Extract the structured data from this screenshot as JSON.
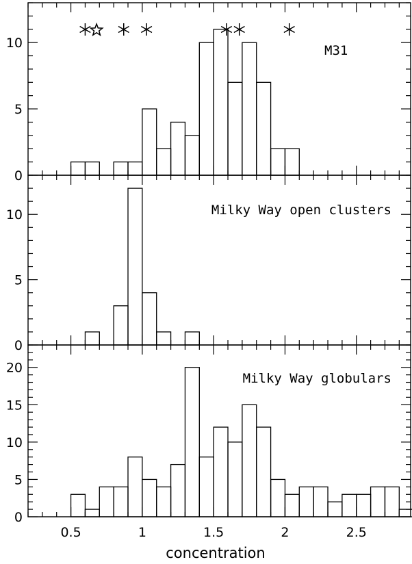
{
  "chart_data": [
    {
      "type": "bar",
      "panel_label": "M31",
      "bin_width": 0.1,
      "bin_starts": [
        0.5,
        0.6,
        0.7,
        0.8,
        0.9,
        1.0,
        1.1,
        1.2,
        1.3,
        1.4,
        1.5,
        1.6,
        1.7,
        1.8,
        1.9,
        2.0
      ],
      "values": [
        1,
        1,
        0,
        1,
        1,
        5,
        2,
        4,
        3,
        10,
        11,
        7,
        10,
        7,
        2,
        2
      ],
      "ylim": [
        0,
        13
      ],
      "yticks": [
        0,
        5,
        10
      ],
      "markers": [
        {
          "x": 0.6,
          "symbol": "asterisk"
        },
        {
          "x": 0.68,
          "symbol": "star-open"
        },
        {
          "x": 0.87,
          "symbol": "asterisk"
        },
        {
          "x": 1.03,
          "symbol": "asterisk"
        },
        {
          "x": 1.59,
          "symbol": "asterisk"
        },
        {
          "x": 1.68,
          "symbol": "asterisk"
        },
        {
          "x": 2.03,
          "symbol": "asterisk"
        }
      ]
    },
    {
      "type": "bar",
      "panel_label": "Milky Way open clusters",
      "bin_width": 0.1,
      "bin_starts": [
        0.6,
        0.8,
        0.9,
        1.0,
        1.1,
        1.3
      ],
      "values": [
        1,
        3,
        12,
        4,
        1,
        1
      ],
      "ylim": [
        0,
        13
      ],
      "yticks": [
        0,
        5,
        10
      ]
    },
    {
      "type": "bar",
      "panel_label": "Milky Way globulars",
      "bin_width": 0.1,
      "bin_starts": [
        0.5,
        0.6,
        0.7,
        0.8,
        0.9,
        1.0,
        1.1,
        1.2,
        1.3,
        1.4,
        1.5,
        1.6,
        1.7,
        1.8,
        1.9,
        2.0,
        2.1,
        2.2,
        2.3,
        2.4,
        2.5,
        2.6,
        2.7,
        2.8
      ],
      "values": [
        3,
        1,
        4,
        4,
        8,
        5,
        4,
        7,
        20,
        8,
        12,
        10,
        15,
        12,
        5,
        3,
        4,
        4,
        2,
        3,
        3,
        4,
        4,
        1
      ],
      "ylim": [
        0,
        23
      ],
      "yticks": [
        0,
        5,
        10,
        15,
        20
      ]
    }
  ],
  "x_axis": {
    "xlim": [
      0.2,
      2.88
    ],
    "xlabel": "concentration",
    "tick_labels": [
      "0.5",
      "1",
      "1.5",
      "2",
      "2.5"
    ],
    "tick_values": [
      0.5,
      1.0,
      1.5,
      2.0,
      2.5
    ],
    "minor_step": 0.1
  }
}
